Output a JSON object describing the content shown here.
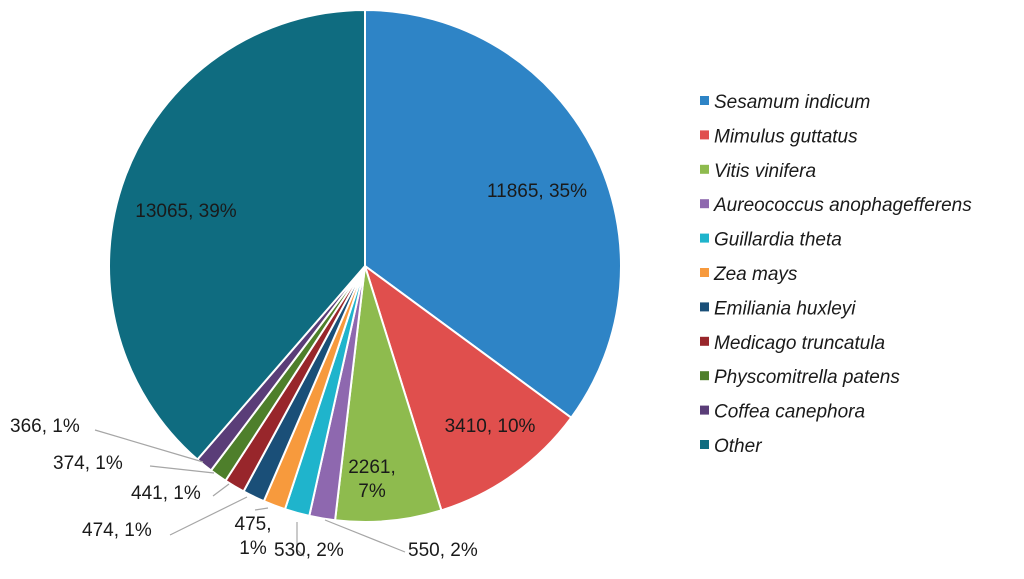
{
  "chart_data": {
    "type": "pie",
    "title": "",
    "legend_position": "right",
    "slices": [
      {
        "name": "Sesamum indicum",
        "value": 11865,
        "label": "11865, 35%",
        "color": "#2E84C6"
      },
      {
        "name": "Mimulus guttatus",
        "value": 3410,
        "label": "3410, 10%",
        "color": "#E04F4D"
      },
      {
        "name": "Vitis vinifera",
        "value": 2261,
        "label": "2261, 7%",
        "color": "#8EBB4E"
      },
      {
        "name": "Aureococcus anophagefferens",
        "value": 550,
        "label": "550, 2%",
        "color": "#8E68AF"
      },
      {
        "name": "Guillardia theta",
        "value": 530,
        "label": "530, 2%",
        "color": "#1FB4CC"
      },
      {
        "name": "Zea mays",
        "value": 475,
        "label": "475, 1%",
        "color": "#F79A3D"
      },
      {
        "name": "Emiliania huxleyi",
        "value": 474,
        "label": "474, 1%",
        "color": "#1A4F78"
      },
      {
        "name": "Medicago truncatula",
        "value": 441,
        "label": "441, 1%",
        "color": "#98262B"
      },
      {
        "name": "Physcomitrella patens",
        "value": 374,
        "label": "374, 1%",
        "color": "#4E7F2B"
      },
      {
        "name": "Coffea canephora",
        "value": 366,
        "label": "366, 1%",
        "color": "#5A3D78"
      },
      {
        "name": "Other",
        "value": 13065,
        "label": "13065, 39%",
        "color": "#0F6C80"
      }
    ]
  }
}
